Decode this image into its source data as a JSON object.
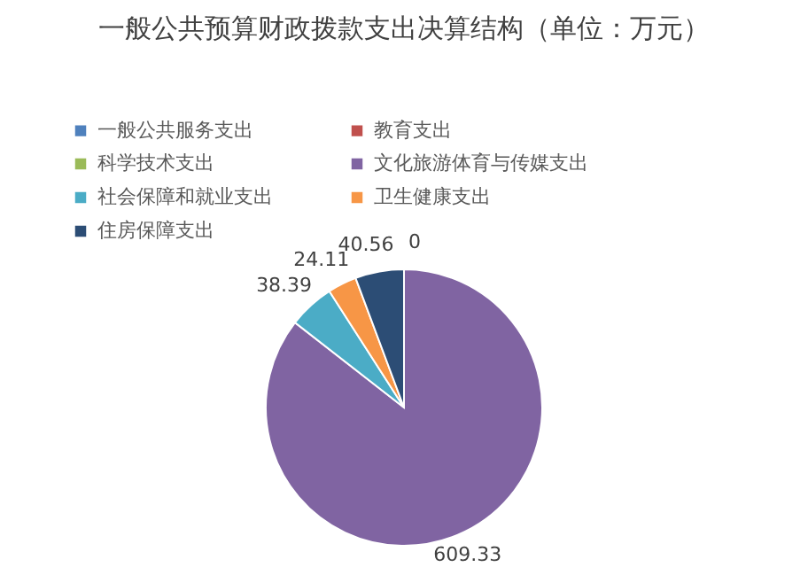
{
  "chart_data": {
    "type": "pie",
    "title": "一般公共预算财政拨款支出决算结构（单位：万元）",
    "categories": [
      "一般公共服务支出",
      "教育支出",
      "科学技术支出",
      "文化旅游体育与传媒支出",
      "社会保障和就业支出",
      "卫生健康支出",
      "住房保障支出"
    ],
    "values": [
      0,
      0,
      0,
      609.33,
      38.39,
      24.11,
      40.56
    ],
    "colors": [
      "#4f81bd",
      "#c0504d",
      "#9bbb59",
      "#8064a2",
      "#4bacc6",
      "#f79646",
      "#2c4d75"
    ],
    "value_labels": [
      null,
      null,
      "0",
      "609.33",
      "38.39",
      "24.11",
      "40.56"
    ],
    "legend": "top"
  }
}
